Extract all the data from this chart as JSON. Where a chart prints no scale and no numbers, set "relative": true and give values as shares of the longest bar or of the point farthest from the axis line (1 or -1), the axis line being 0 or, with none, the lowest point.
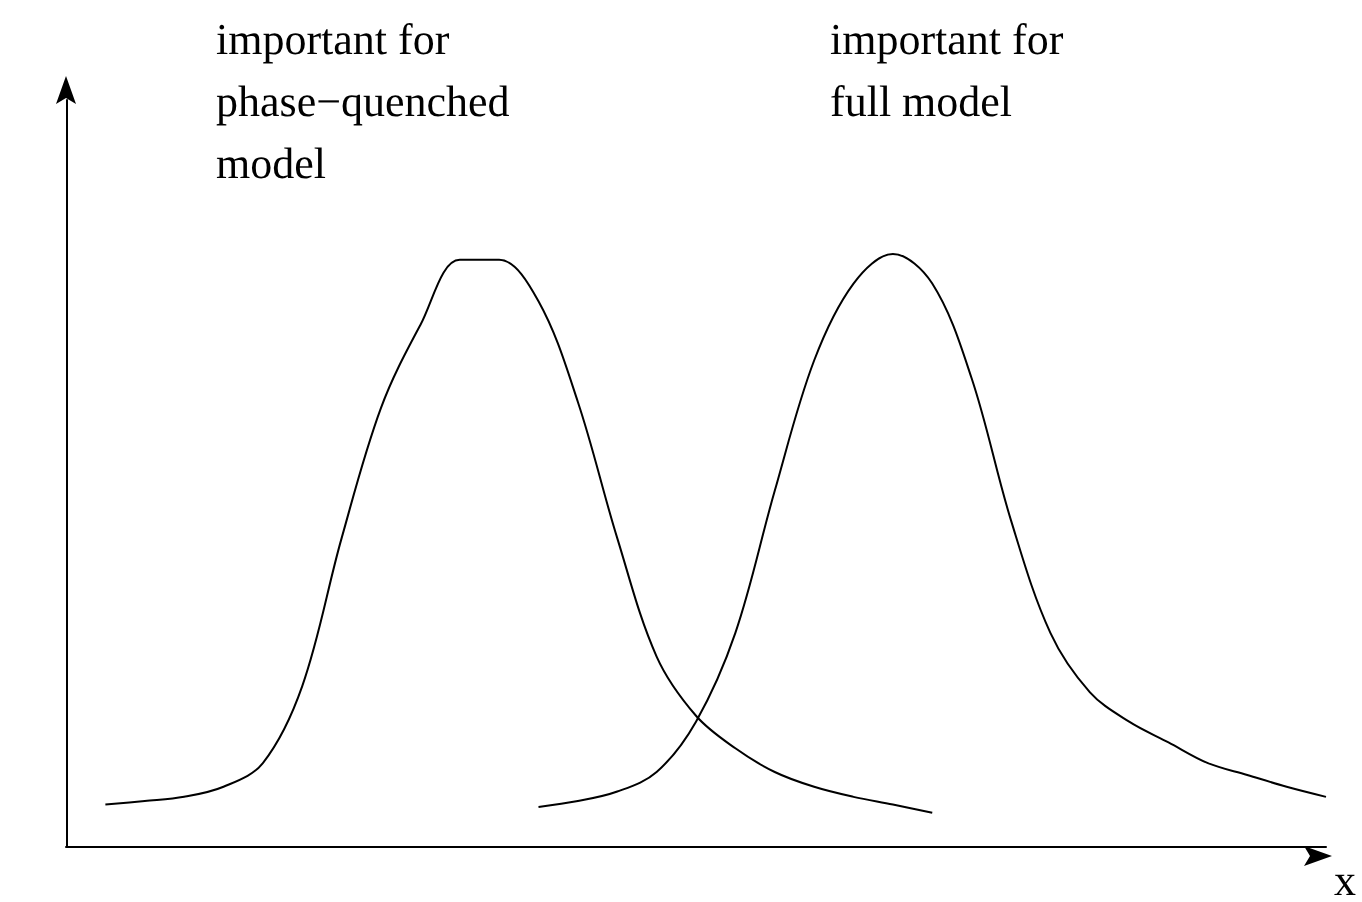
{
  "chart_data": {
    "type": "line",
    "relative": true,
    "xlabel": "x",
    "annotations": [
      "important for phase−quenched model",
      "important for full model"
    ],
    "categories": [
      null,
      null,
      null,
      null,
      null,
      null,
      null,
      null,
      null,
      null,
      null,
      null,
      null,
      null,
      null,
      null,
      null,
      null,
      null,
      null,
      null,
      null,
      null,
      null,
      null,
      null,
      null,
      null,
      null,
      null,
      null,
      null,
      null
    ],
    "series": [
      {
        "color": "#000000",
        "values": [
          null,
          0.07,
          0.076,
          0.083,
          0.1,
          0.14,
          0.27,
          0.52,
          0.74,
          0.88,
          0.99,
          0.99,
          0.92,
          0.75,
          0.52,
          0.32,
          0.22,
          0.165,
          0.125,
          0.1,
          0.083,
          0.07,
          0.056,
          null,
          null,
          null,
          null,
          null,
          null,
          null,
          null,
          null,
          null
        ]
      },
      {
        "color": "#000000",
        "values": [
          null,
          null,
          null,
          null,
          null,
          null,
          null,
          null,
          null,
          null,
          null,
          null,
          0.066,
          0.076,
          0.092,
          0.125,
          0.21,
          0.36,
          0.6,
          0.82,
          0.95,
          1,
          0.95,
          0.79,
          0.55,
          0.36,
          0.26,
          0.21,
          0.175,
          0.14,
          0.12,
          0.1,
          0.083
        ]
      }
    ]
  }
}
